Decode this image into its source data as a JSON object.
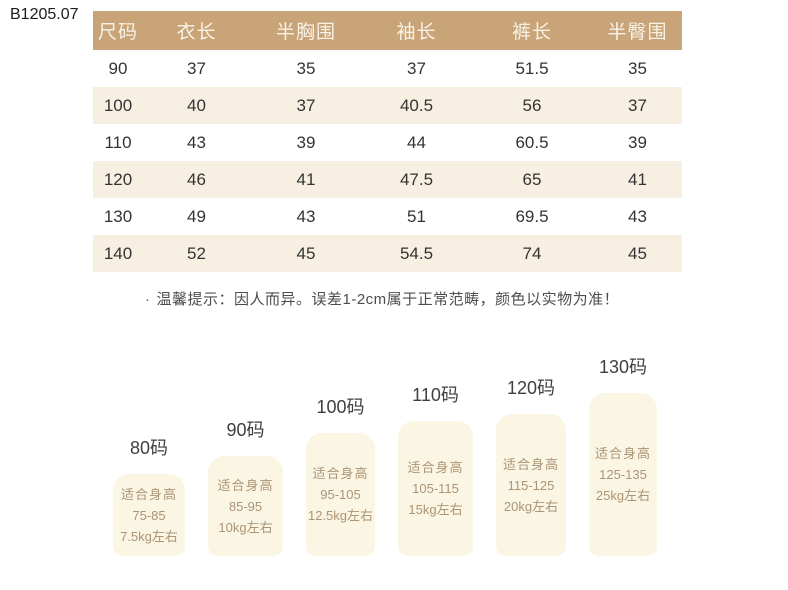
{
  "product_code": "B1205.07",
  "size_table": {
    "headers": [
      "尺码",
      "衣长",
      "半胸围",
      "袖长",
      "裤长",
      "半臀围"
    ],
    "rows": [
      [
        "90",
        "37",
        "35",
        "37",
        "51.5",
        "35"
      ],
      [
        "100",
        "40",
        "37",
        "40.5",
        "56",
        "37"
      ],
      [
        "110",
        "43",
        "39",
        "44",
        "60.5",
        "39"
      ],
      [
        "120",
        "46",
        "41",
        "47.5",
        "65",
        "41"
      ],
      [
        "130",
        "49",
        "43",
        "51",
        "69.5",
        "43"
      ],
      [
        "140",
        "52",
        "45",
        "54.5",
        "74",
        "45"
      ]
    ]
  },
  "note": {
    "bullet": "·",
    "text": "温馨提示：因人而异。误差1-2cm属于正常范畴，颜色以实物为准！"
  },
  "size_tags": [
    {
      "label": "80码",
      "fit_title": "适合身高",
      "height_range": "75-85",
      "weight": "7.5kg左右"
    },
    {
      "label": "90码",
      "fit_title": "适合身高",
      "height_range": "85-95",
      "weight": "10kg左右"
    },
    {
      "label": "100码",
      "fit_title": "适合身高",
      "height_range": "95-105",
      "weight": "12.5kg左右"
    },
    {
      "label": "110码",
      "fit_title": "适合身高",
      "height_range": "105-115",
      "weight": "15kg左右"
    },
    {
      "label": "120码",
      "fit_title": "适合身高",
      "height_range": "115-125",
      "weight": "20kg左右"
    },
    {
      "label": "130码",
      "fit_title": "适合身高",
      "height_range": "125-135",
      "weight": "25kg左右"
    }
  ],
  "colors": {
    "header_bg": "#c8a478",
    "header_text": "#f8f2e6",
    "row_alt_bg": "#f7f0e2",
    "tag_bg": "#fbf5e4",
    "tag_text": "#ab9576"
  }
}
